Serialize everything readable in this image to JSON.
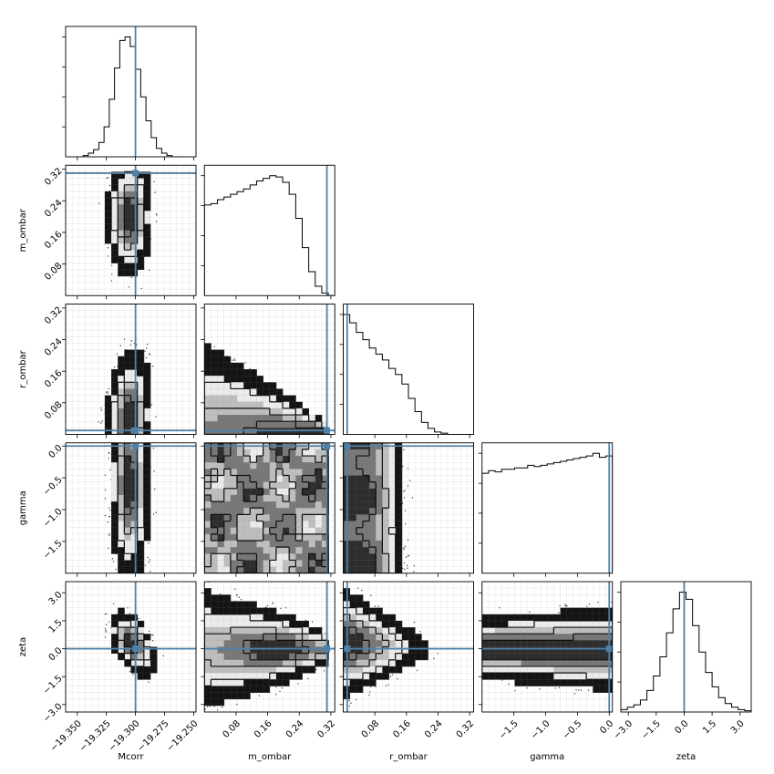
{
  "figure": {
    "type": "corner-plot"
  },
  "chart_data": {
    "type": "corner",
    "parameters": [
      "Mcorr",
      "m_ombar",
      "r_ombar",
      "gamma",
      "zeta"
    ],
    "ranges": {
      "Mcorr": [
        -19.36,
        -19.248
      ],
      "m_ombar": [
        0.0,
        0.33
      ],
      "r_ombar": [
        0.0,
        0.33
      ],
      "gamma": [
        -2.0,
        0.05
      ],
      "zeta": [
        -3.4,
        3.6
      ]
    },
    "ticks": {
      "Mcorr": {
        "values": [
          -19.35,
          -19.325,
          -19.3,
          -19.275,
          -19.25
        ],
        "labels": [
          "−19.350",
          "−19.325",
          "−19.300",
          "−19.275",
          "−19.250"
        ]
      },
      "m_ombar": {
        "values": [
          0.08,
          0.16,
          0.24,
          0.32
        ],
        "labels": [
          "0.08",
          "0.16",
          "0.24",
          "0.32"
        ]
      },
      "r_ombar": {
        "values": [
          0.08,
          0.16,
          0.24,
          0.32
        ],
        "labels": [
          "0.08",
          "0.16",
          "0.24",
          "0.32"
        ]
      },
      "gamma": {
        "values": [
          -1.5,
          -1.0,
          -0.5,
          0.0
        ],
        "labels": [
          "−1.5",
          "−1.0",
          "−0.5",
          "0.0"
        ]
      },
      "zeta": {
        "values": [
          -3.0,
          -1.5,
          0.0,
          1.5,
          3.0
        ],
        "labels": [
          "−3.0",
          "−1.5",
          "0.0",
          "1.5",
          "3.0"
        ]
      }
    },
    "truths": {
      "Mcorr": -19.3,
      "m_ombar": 0.31,
      "r_ombar": 0.01,
      "gamma": 0.0,
      "zeta": 0.0
    },
    "truth_color": "#4f81a8",
    "histograms": {
      "Mcorr": {
        "edges_range": [
          -19.345,
          -19.255
        ],
        "bins": 20,
        "counts": [
          1,
          3,
          6,
          12,
          25,
          48,
          74,
          97,
          100,
          92,
          73,
          50,
          30,
          16,
          7,
          3,
          1,
          0,
          0,
          0
        ]
      },
      "m_ombar": {
        "edges_range": [
          0.0,
          0.33
        ],
        "bins": 20,
        "counts": [
          68,
          69,
          72,
          74,
          76,
          78,
          80,
          83,
          86,
          88,
          90,
          89,
          85,
          76,
          58,
          36,
          18,
          7,
          2,
          0
        ]
      },
      "r_ombar": {
        "edges_range": [
          0.0,
          0.33
        ],
        "bins": 20,
        "counts": [
          100,
          93,
          85,
          79,
          72,
          67,
          62,
          55,
          50,
          42,
          30,
          19,
          10,
          5,
          2,
          1,
          0,
          0,
          0,
          0
        ]
      },
      "gamma": {
        "edges_range": [
          -2.0,
          0.05
        ],
        "bins": 20,
        "counts": [
          75,
          77,
          76,
          78,
          78,
          79,
          79,
          81,
          80,
          81,
          82,
          83,
          84,
          85,
          86,
          87,
          88,
          90,
          87,
          88
        ]
      },
      "zeta": {
        "edges_range": [
          -3.4,
          3.6
        ],
        "bins": 20,
        "counts": [
          2,
          4,
          6,
          10,
          18,
          30,
          46,
          66,
          86,
          100,
          94,
          72,
          50,
          33,
          21,
          12,
          7,
          4,
          2,
          1
        ]
      }
    },
    "pairs": [
      {
        "x": "Mcorr",
        "y": "m_ombar",
        "shape": "gauss2d",
        "mean": [
          -19.305,
          0.2
        ],
        "sigma": [
          0.009,
          0.07
        ],
        "rho": 0.0,
        "support": {
          "ymin": 0.0,
          "ymax": 0.31
        }
      },
      {
        "x": "Mcorr",
        "y": "r_ombar",
        "shape": "gauss2d",
        "mean": [
          -19.305,
          0.04
        ],
        "sigma": [
          0.009,
          0.08
        ],
        "rho": 0.1,
        "support": {
          "ymin": 0.0,
          "ymax": 0.31
        }
      },
      {
        "x": "m_ombar",
        "y": "r_ombar",
        "shape": "wedge",
        "line": [
          [
            0.0,
            0.22
          ],
          [
            0.31,
            0.0
          ]
        ]
      },
      {
        "x": "Mcorr",
        "y": "gamma",
        "shape": "gauss2d",
        "mean": [
          -19.305,
          -0.6
        ],
        "sigma": [
          0.008,
          0.7
        ],
        "rho": 0.0,
        "support": {
          "ymin": -2.0,
          "ymax": 0.0
        }
      },
      {
        "x": "m_ombar",
        "y": "gamma",
        "shape": "uniform",
        "support": {
          "xmin": 0.0,
          "xmax": 0.31,
          "ymin": -2.0,
          "ymax": 0.0
        }
      },
      {
        "x": "r_ombar",
        "y": "gamma",
        "shape": "band",
        "support": {
          "xmin": 0.0,
          "xmax": 0.13,
          "ymin": -2.0,
          "ymax": 0.0
        }
      },
      {
        "x": "Mcorr",
        "y": "zeta",
        "shape": "gauss2d",
        "mean": [
          -19.303,
          0.3
        ],
        "sigma": [
          0.009,
          0.8
        ],
        "rho": -0.5
      },
      {
        "x": "m_ombar",
        "y": "zeta",
        "shape": "fan",
        "support": {
          "xmin": 0.0,
          "xmax": 0.31
        }
      },
      {
        "x": "r_ombar",
        "y": "zeta",
        "shape": "fan-down",
        "support": {
          "xmin": 0.0,
          "xmax": 0.25
        }
      },
      {
        "x": "gamma",
        "y": "zeta",
        "shape": "band-h",
        "support": {
          "xmin": -2.0,
          "xmax": 0.0
        }
      }
    ]
  }
}
